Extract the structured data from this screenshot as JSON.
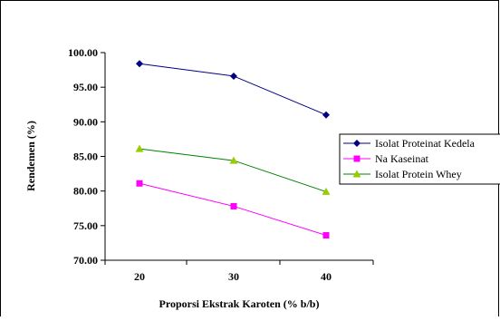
{
  "chart_data": {
    "type": "line",
    "title": "",
    "xlabel": "Proporsi Ekstrak Karoten (% b/b)",
    "ylabel": "Rendemen (%)",
    "x": [
      20,
      30,
      40
    ],
    "x_tick_labels": [
      "20",
      "30",
      "40"
    ],
    "ylim": [
      70,
      100
    ],
    "y_tick_labels": [
      "70.00",
      "75.00",
      "80.00",
      "85.00",
      "90.00",
      "95.00",
      "100.00"
    ],
    "grid": false,
    "legend_position": "right",
    "series": [
      {
        "name": "Isolat Proteinat Kedela",
        "values": [
          98.4,
          96.6,
          91.0
        ],
        "color": "#000080",
        "marker": "diamond",
        "marker_color": "#000080"
      },
      {
        "name": "Na Kaseinat",
        "values": [
          81.1,
          77.8,
          73.6
        ],
        "color": "#ff00ff",
        "marker": "square",
        "marker_color": "#ff00ff"
      },
      {
        "name": "Isolat Protein Whey",
        "values": [
          86.1,
          84.4,
          79.9
        ],
        "color": "#008000",
        "marker": "triangle",
        "marker_color": "#99cc00"
      }
    ]
  }
}
